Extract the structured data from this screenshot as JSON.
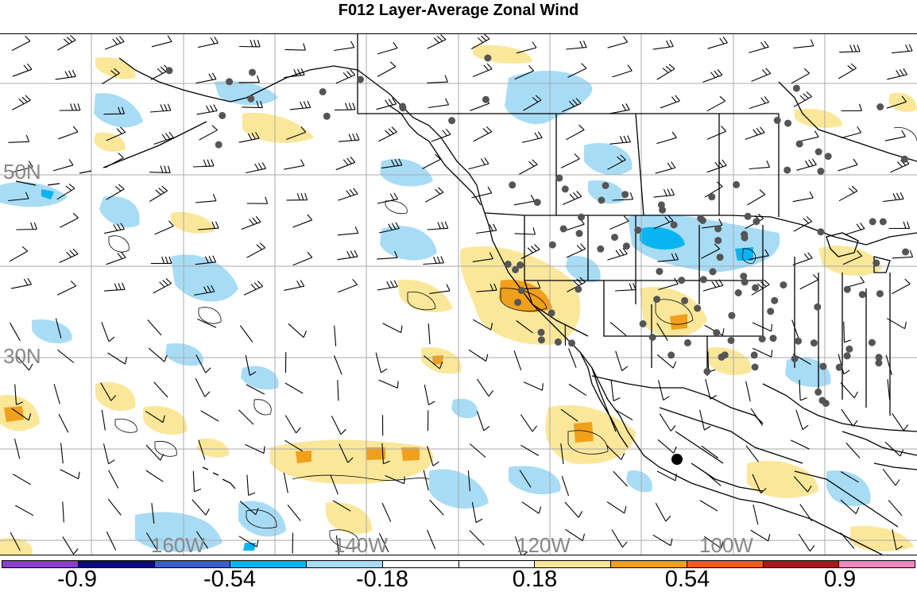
{
  "title": "F012 Layer-Average Zonal Wind",
  "map": {
    "lat_labels": [
      "50N",
      "30N"
    ],
    "lon_labels": [
      "160W",
      "140W",
      "120W",
      "100W"
    ]
  },
  "colorbar": {
    "colors": [
      "#8a3ec9",
      "#0a0a7a",
      "#3a5fc8",
      "#0ab4f0",
      "#a8dcf5",
      "#ffffff",
      "#ffffff",
      "#fbe79a",
      "#f0a01c",
      "#f05a20",
      "#a81818",
      "#f088c0"
    ],
    "tick_labels": [
      "-0.9",
      "-0.54",
      "-0.18",
      "0.18",
      "0.54",
      "0.9"
    ]
  },
  "palette": {
    "light_blue": "#a8dcf5",
    "mid_blue": "#0ab4f0",
    "light_yellow": "#fbe79a",
    "orange": "#f0a01c",
    "station": "#555555",
    "grid": "#aaaaaa",
    "coast": "#000000"
  }
}
